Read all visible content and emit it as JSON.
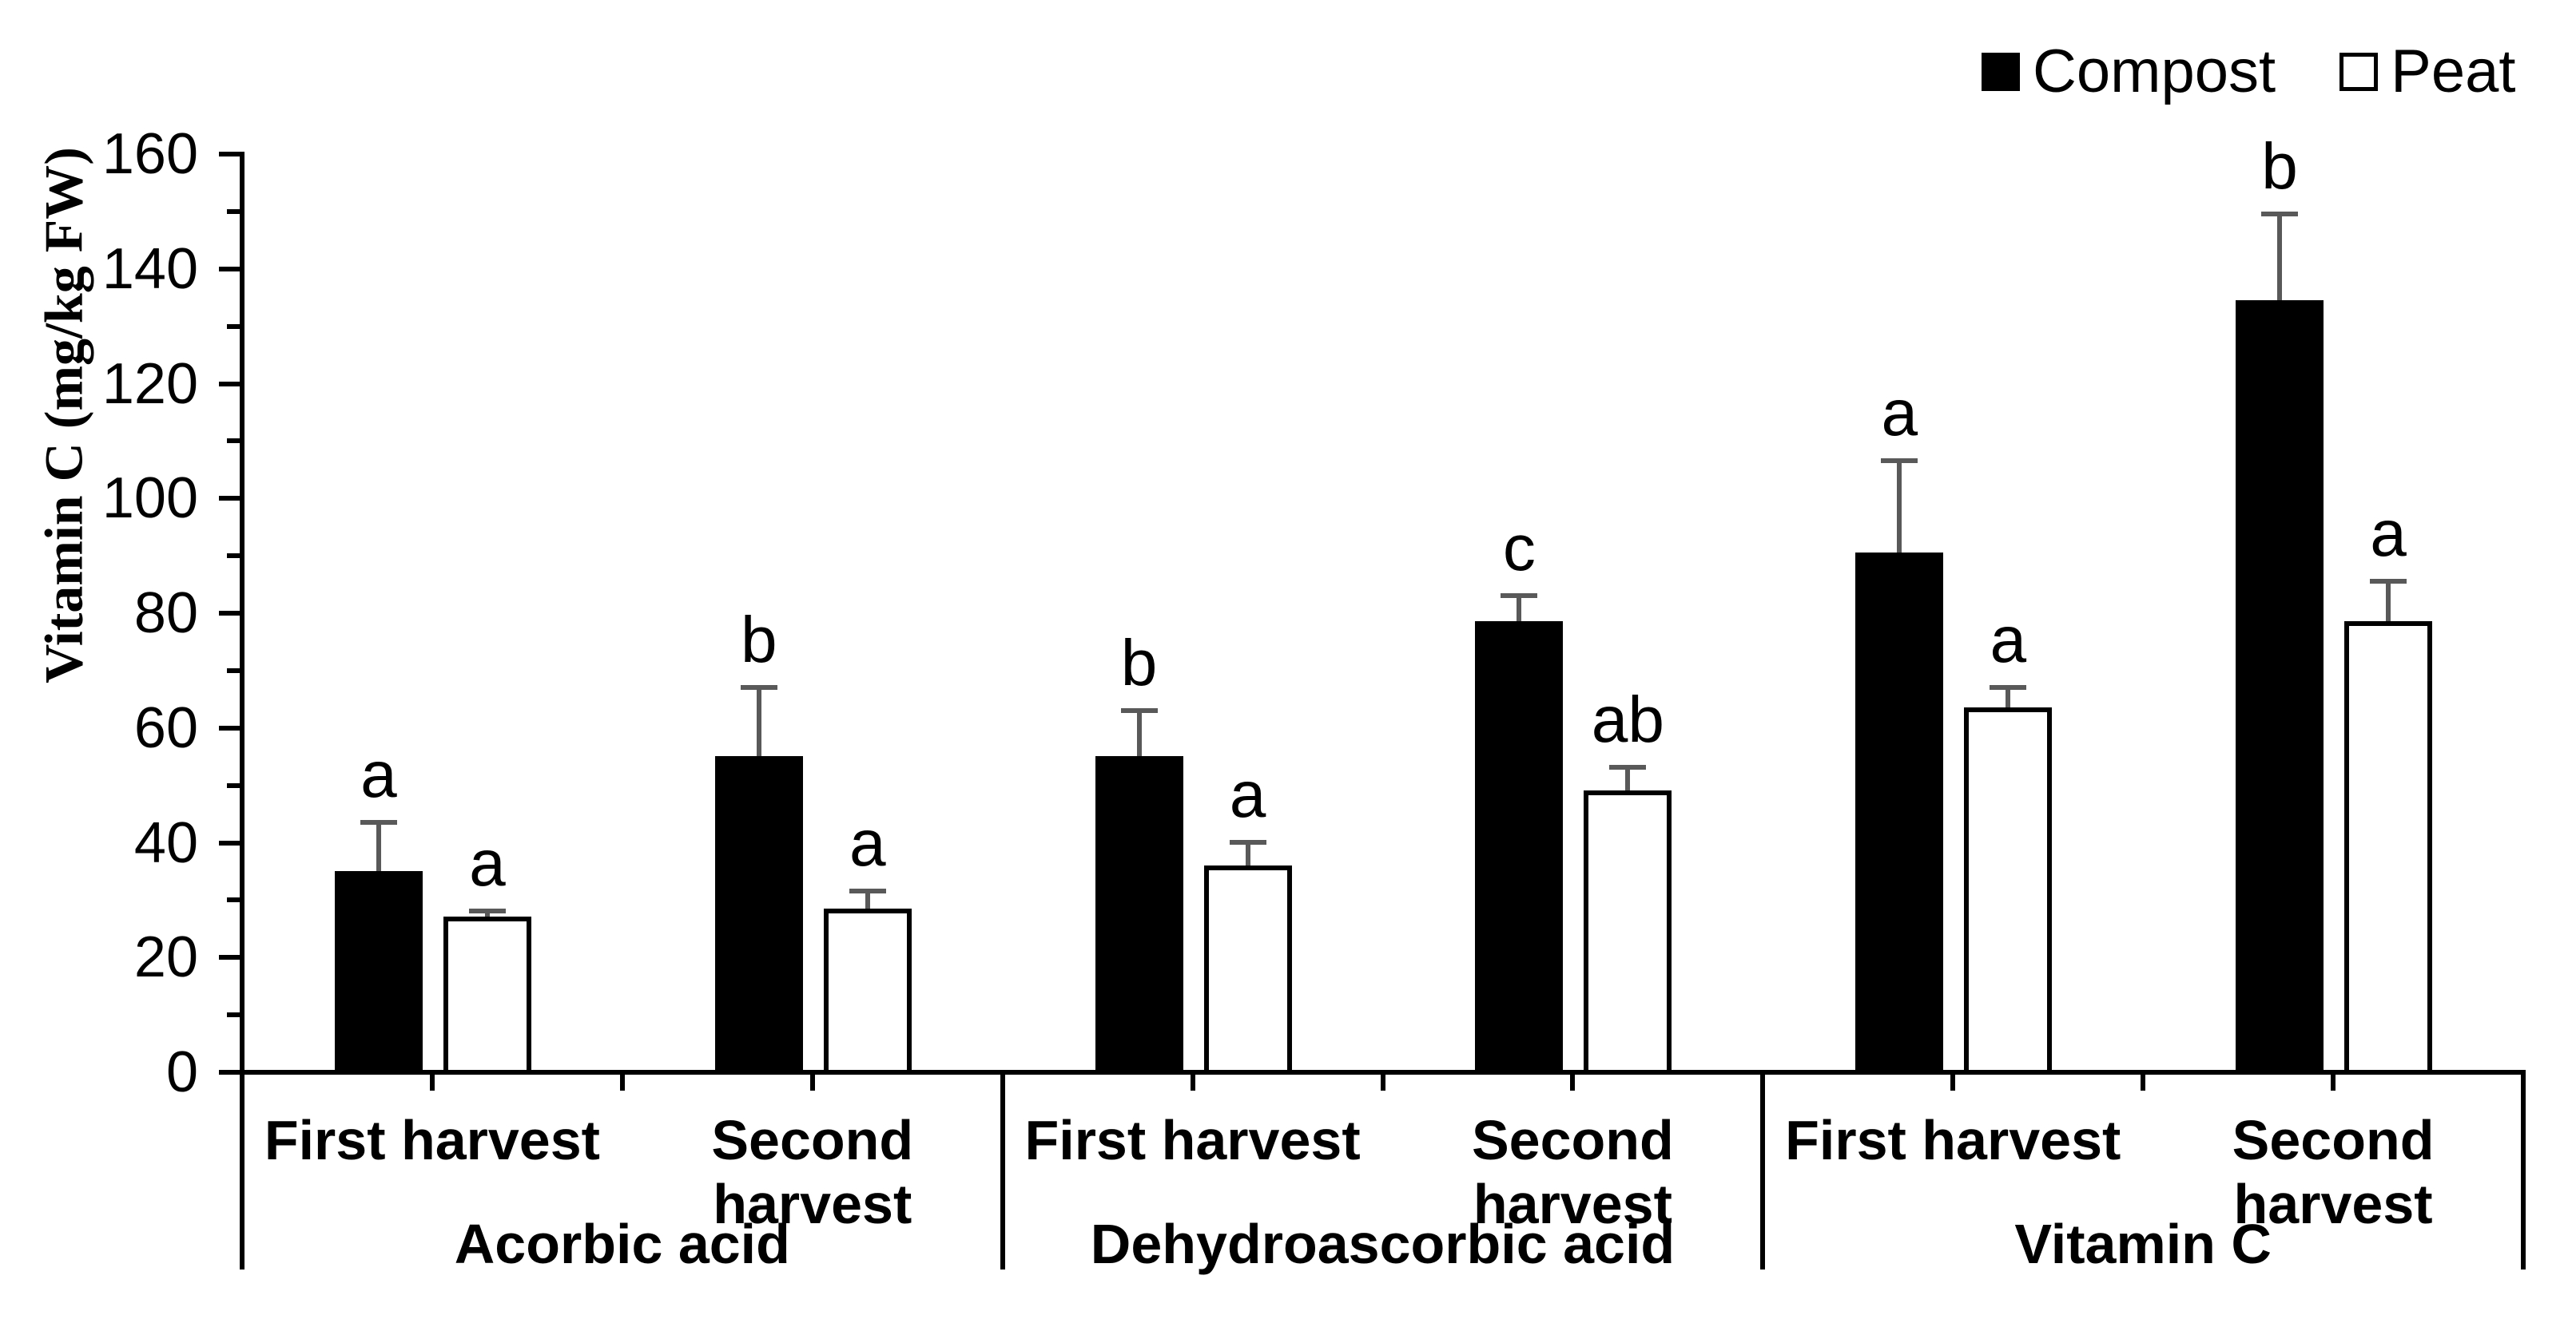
{
  "chart_data": {
    "type": "bar",
    "title": "",
    "ylabel": "Vitamin C (mg/kg FW)",
    "xlabel": "",
    "ylim": [
      0,
      160
    ],
    "y_major_step": 20,
    "y_minor_step": 10,
    "y_tick_labels": [
      "0",
      "20",
      "40",
      "60",
      "80",
      "100",
      "120",
      "140",
      "160"
    ],
    "grid": "off",
    "legend_position": "top-right",
    "colors": {
      "compost_fill": "#000000",
      "peat_fill": "#ffffff",
      "outline": "#000000",
      "error_bar": "#595959"
    },
    "legend": [
      {
        "name": "Compost",
        "fill": "#000000"
      },
      {
        "name": "Peat",
        "fill": "#ffffff"
      }
    ],
    "groups": [
      {
        "label": "Acorbic acid",
        "categories": [
          {
            "label": "First harvest",
            "bars": [
              {
                "series": "Compost",
                "value": 35.5,
                "error": 8.5,
                "letter": "a"
              },
              {
                "series": "Peat",
                "value": 27.5,
                "error": 1,
                "letter": "a"
              }
            ]
          },
          {
            "label": "Second harvest",
            "bars": [
              {
                "series": "Compost",
                "value": 55.5,
                "error": 12,
                "letter": "b"
              },
              {
                "series": "Peat",
                "value": 29,
                "error": 3,
                "letter": "a"
              }
            ]
          }
        ]
      },
      {
        "label": "Dehydroascorbic acid",
        "categories": [
          {
            "label": "First harvest",
            "bars": [
              {
                "series": "Compost",
                "value": 55.5,
                "error": 8,
                "letter": "b"
              },
              {
                "series": "Peat",
                "value": 36.5,
                "error": 4,
                "letter": "a"
              }
            ]
          },
          {
            "label": "Second harvest",
            "bars": [
              {
                "series": "Compost",
                "value": 79,
                "error": 4.5,
                "letter": "c"
              },
              {
                "series": "Peat",
                "value": 49.5,
                "error": 4,
                "letter": "ab"
              }
            ]
          }
        ]
      },
      {
        "label": "Vitamin C",
        "categories": [
          {
            "label": "First harvest",
            "bars": [
              {
                "series": "Compost",
                "value": 91,
                "error": 16,
                "letter": "a"
              },
              {
                "series": "Peat",
                "value": 64,
                "error": 3.5,
                "letter": "a"
              }
            ]
          },
          {
            "label": "Second harvest",
            "bars": [
              {
                "series": "Compost",
                "value": 135,
                "error": 15,
                "letter": "b"
              },
              {
                "series": "Peat",
                "value": 79,
                "error": 7,
                "letter": "a"
              }
            ]
          }
        ]
      }
    ]
  }
}
